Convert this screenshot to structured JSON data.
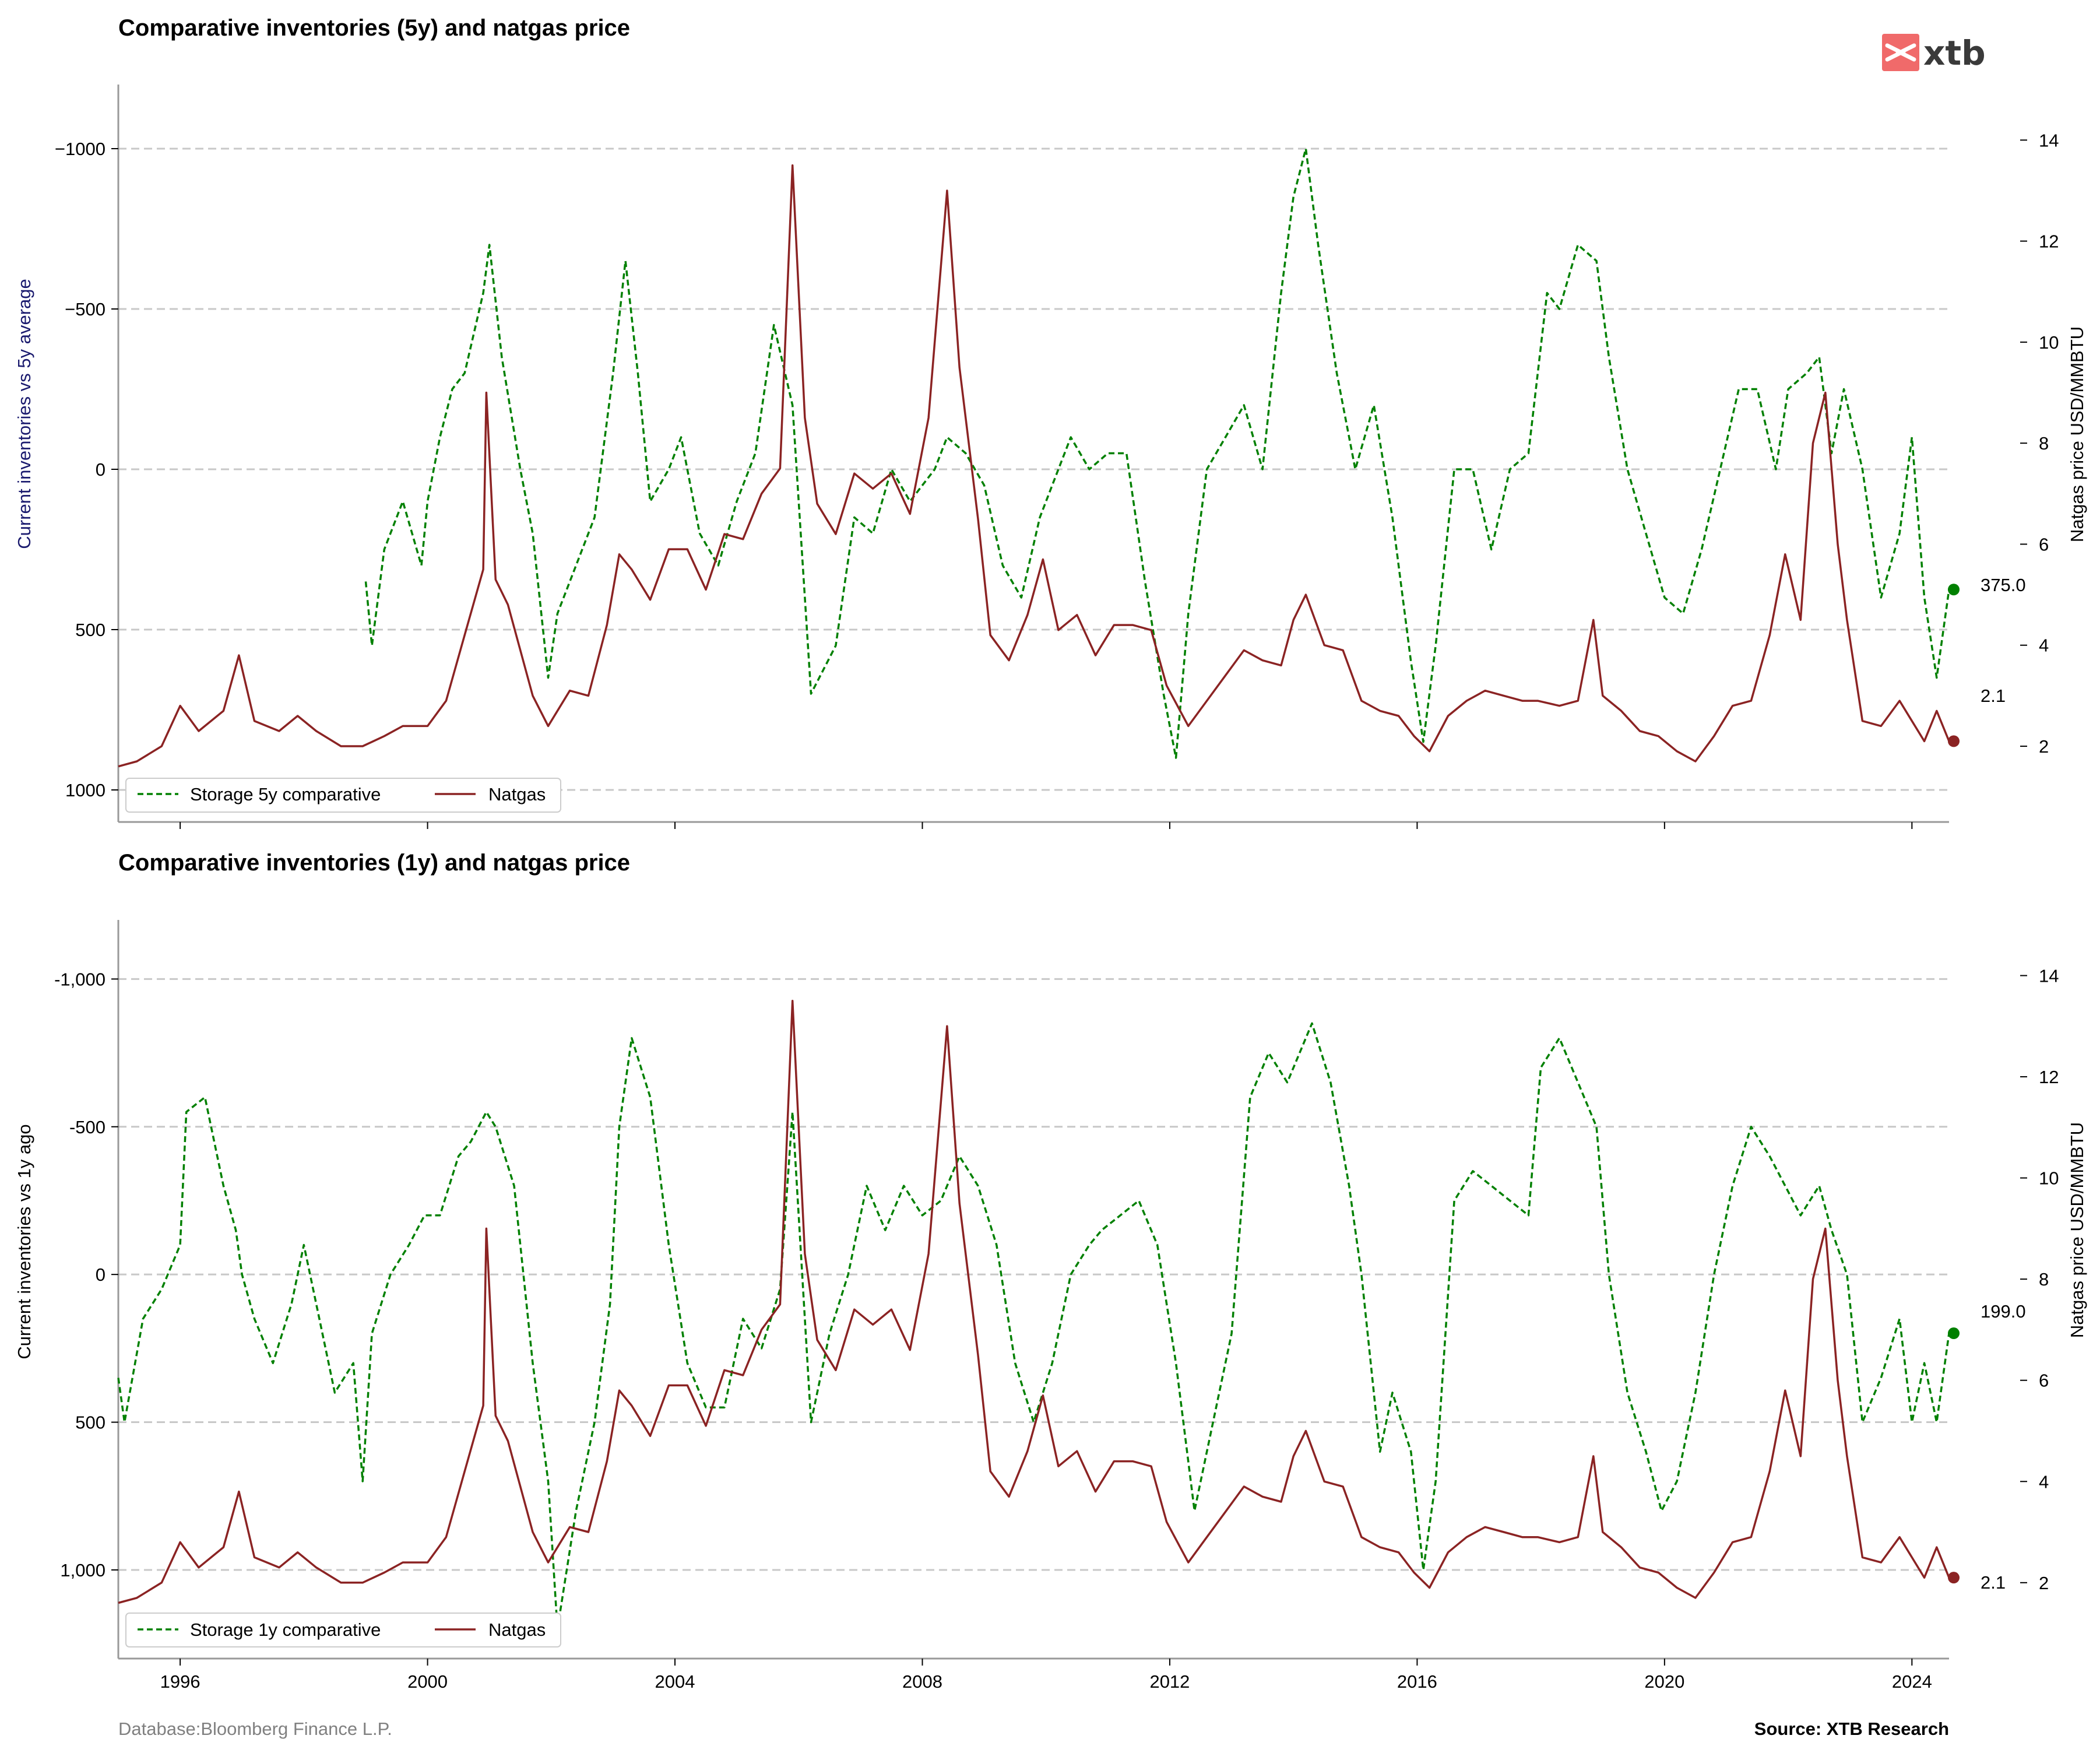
{
  "brand": {
    "logo_text": "xtb",
    "logo_color": "#f06a6a"
  },
  "footer": {
    "database": "Database:Bloomberg Finance L.P.",
    "source": "Source: XTB Research"
  },
  "colors": {
    "storage": "#008000",
    "natgas": "#8b2323",
    "grid": "#c8c8c8",
    "axis": "#999999",
    "left_label_top": "#1a1a6e",
    "left_label_bottom": "#000000"
  },
  "chart_data": [
    {
      "type": "line",
      "title": "Comparative inventories (5y) and natgas price",
      "ylabel": "Current inventories vs 5y average",
      "y2label": "Natgas price USD/MMBTU",
      "xlim": [
        1995.0,
        2024.6
      ],
      "ylim": [
        1100,
        -1200
      ],
      "y_inverted": true,
      "yticks": [
        -1000,
        -500,
        0,
        500,
        1000
      ],
      "ytick_labels": [
        "−1000",
        "−500",
        "0",
        "500",
        "1000"
      ],
      "y2lim": [
        0.5,
        15.1
      ],
      "y2ticks": [
        2,
        4,
        6,
        8,
        10,
        12,
        14
      ],
      "y2tick_labels": [
        "2",
        "4",
        "6",
        "8",
        "10",
        "12",
        "14"
      ],
      "grid": true,
      "legend": "bottom-left",
      "series": [
        {
          "name": "Storage 5y comparative",
          "style": "dashed",
          "axis": "left",
          "x": [
            1999.0,
            1999.1,
            1999.3,
            1999.6,
            1999.9,
            2000.0,
            2000.2,
            2000.4,
            2000.6,
            2000.9,
            2001.0,
            2001.2,
            2001.5,
            2001.7,
            2001.95,
            2002.1,
            2002.4,
            2002.7,
            2003.0,
            2003.2,
            2003.4,
            2003.6,
            2003.9,
            2004.1,
            2004.4,
            2004.7,
            2005.0,
            2005.3,
            2005.6,
            2005.9,
            2006.2,
            2006.6,
            2006.9,
            2007.2,
            2007.5,
            2007.8,
            2008.2,
            2008.4,
            2008.7,
            2009.0,
            2009.3,
            2009.6,
            2009.9,
            2010.2,
            2010.4,
            2010.7,
            2011.0,
            2011.3,
            2011.6,
            2011.9,
            2012.1,
            2012.3,
            2012.6,
            2012.9,
            2013.2,
            2013.5,
            2013.8,
            2014.0,
            2014.2,
            2014.4,
            2014.7,
            2015.0,
            2015.3,
            2015.6,
            2015.9,
            2016.1,
            2016.3,
            2016.6,
            2016.9,
            2017.2,
            2017.5,
            2017.8,
            2018.1,
            2018.3,
            2018.6,
            2018.9,
            2019.1,
            2019.4,
            2019.7,
            2020.0,
            2020.3,
            2020.6,
            2020.9,
            2021.2,
            2021.5,
            2021.8,
            2022.0,
            2022.3,
            2022.5,
            2022.7,
            2022.9,
            2023.2,
            2023.5,
            2023.8,
            2024.0,
            2024.2,
            2024.4,
            2024.6
          ],
          "values": [
            350,
            550,
            250,
            100,
            300,
            100,
            -100,
            -250,
            -300,
            -550,
            -700,
            -350,
            0,
            200,
            650,
            450,
            300,
            150,
            -300,
            -650,
            -300,
            100,
            0,
            -100,
            200,
            300,
            100,
            -50,
            -450,
            -200,
            700,
            550,
            150,
            200,
            0,
            100,
            0,
            -100,
            -50,
            50,
            300,
            400,
            150,
            0,
            -100,
            0,
            -50,
            -50,
            350,
            700,
            900,
            450,
            0,
            -100,
            -200,
            0,
            -550,
            -850,
            -1000,
            -700,
            -300,
            0,
            -200,
            150,
            600,
            850,
            550,
            0,
            0,
            250,
            0,
            -50,
            -550,
            -500,
            -700,
            -650,
            -350,
            0,
            200,
            400,
            450,
            250,
            0,
            -250,
            -250,
            0,
            -250,
            -300,
            -350,
            -50,
            -250,
            0,
            400,
            200,
            -100,
            400,
            650,
            375
          ]
        },
        {
          "name": "Natgas",
          "style": "solid",
          "axis": "right",
          "x": [
            1995.0,
            1995.3,
            1995.7,
            1996.0,
            1996.3,
            1996.7,
            1996.95,
            1997.2,
            1997.6,
            1997.9,
            1998.2,
            1998.6,
            1998.95,
            1999.3,
            1999.6,
            2000.0,
            2000.3,
            2000.6,
            2000.9,
            2000.95,
            2001.1,
            2001.3,
            2001.7,
            2001.95,
            2002.3,
            2002.6,
            2002.9,
            2003.1,
            2003.3,
            2003.6,
            2003.9,
            2004.2,
            2004.5,
            2004.8,
            2005.1,
            2005.4,
            2005.7,
            2005.9,
            2006.0,
            2006.1,
            2006.3,
            2006.6,
            2006.9,
            2007.2,
            2007.5,
            2007.8,
            2008.1,
            2008.4,
            2008.6,
            2008.9,
            2009.1,
            2009.4,
            2009.7,
            2009.95,
            2010.2,
            2010.5,
            2010.8,
            2011.1,
            2011.4,
            2011.7,
            2011.95,
            2012.3,
            2012.6,
            2012.9,
            2013.2,
            2013.5,
            2013.8,
            2014.0,
            2014.2,
            2014.5,
            2014.8,
            2015.1,
            2015.4,
            2015.7,
            2015.95,
            2016.2,
            2016.5,
            2016.8,
            2017.1,
            2017.4,
            2017.7,
            2017.95,
            2018.3,
            2018.6,
            2018.85,
            2019.0,
            2019.3,
            2019.6,
            2019.9,
            2020.2,
            2020.5,
            2020.8,
            2021.1,
            2021.4,
            2021.7,
            2021.95,
            2022.2,
            2022.4,
            2022.6,
            2022.8,
            2022.95,
            2023.2,
            2023.5,
            2023.8,
            2024.0,
            2024.2,
            2024.4,
            2024.6
          ],
          "values": [
            1.6,
            1.7,
            2.0,
            2.8,
            2.3,
            2.7,
            3.8,
            2.5,
            2.3,
            2.6,
            2.3,
            2.0,
            2.0,
            2.2,
            2.4,
            2.4,
            2.9,
            4.2,
            5.5,
            9.0,
            5.3,
            4.8,
            3.0,
            2.4,
            3.1,
            3.0,
            4.4,
            5.8,
            5.5,
            4.9,
            5.9,
            5.9,
            5.1,
            6.2,
            6.1,
            7.0,
            7.5,
            13.5,
            11.0,
            8.5,
            6.8,
            6.2,
            7.4,
            7.1,
            7.4,
            6.6,
            8.5,
            13.0,
            9.5,
            6.5,
            4.2,
            3.7,
            4.6,
            5.7,
            4.3,
            4.6,
            3.8,
            4.4,
            4.4,
            4.3,
            3.2,
            2.4,
            2.9,
            3.4,
            3.9,
            3.7,
            3.6,
            4.5,
            5.0,
            4.0,
            3.9,
            2.9,
            2.7,
            2.6,
            2.2,
            1.9,
            2.6,
            2.9,
            3.1,
            3.0,
            2.9,
            2.9,
            2.8,
            2.9,
            4.5,
            3.0,
            2.7,
            2.3,
            2.2,
            1.9,
            1.7,
            2.2,
            2.8,
            2.9,
            4.2,
            5.8,
            4.5,
            8.0,
            9.0,
            6.0,
            4.5,
            2.5,
            2.4,
            2.9,
            2.5,
            2.1,
            2.7,
            2.1
          ]
        }
      ],
      "end_labels": {
        "storage": "375.0",
        "natgas": "2.1"
      },
      "end_values": {
        "storage": 375,
        "natgas": 2.1
      }
    },
    {
      "type": "line",
      "title": "Comparative inventories (1y) and natgas price",
      "ylabel": "Current inventories vs 1y ago",
      "y2label": "Natgas price USD/MMBTU",
      "xlim": [
        1995.0,
        2024.6
      ],
      "ylim": [
        1300,
        -1200
      ],
      "y_inverted": true,
      "yticks": [
        -1000,
        -500,
        0,
        500,
        1000
      ],
      "ytick_labels": [
        "-1,000",
        "-500",
        "0",
        "500",
        "1,000"
      ],
      "y2lim": [
        0.5,
        15.1
      ],
      "y2ticks": [
        2,
        4,
        6,
        8,
        10,
        12,
        14
      ],
      "y2tick_labels": [
        "2",
        "4",
        "6",
        "8",
        "10",
        "12",
        "14"
      ],
      "xticks": [
        1996,
        2000,
        2004,
        2008,
        2012,
        2016,
        2020,
        2024
      ],
      "xtick_labels": [
        "1996",
        "2000",
        "2004",
        "2008",
        "2012",
        "2016",
        "2020",
        "2024"
      ],
      "grid": true,
      "legend": "bottom-left",
      "series": [
        {
          "name": "Storage 1y comparative",
          "style": "dashed",
          "axis": "left",
          "x": [
            1995.0,
            1995.1,
            1995.4,
            1995.7,
            1996.0,
            1996.1,
            1996.4,
            1996.7,
            1996.9,
            1997.0,
            1997.2,
            1997.5,
            1997.8,
            1998.0,
            1998.2,
            1998.5,
            1998.8,
            1998.95,
            1999.1,
            1999.4,
            1999.7,
            1999.95,
            2000.2,
            2000.5,
            2000.7,
            2000.95,
            2001.1,
            2001.4,
            2001.7,
            2001.95,
            2002.1,
            2002.4,
            2002.7,
            2002.95,
            2003.1,
            2003.3,
            2003.6,
            2003.9,
            2004.2,
            2004.5,
            2004.8,
            2005.1,
            2005.4,
            2005.7,
            2005.9,
            2006.2,
            2006.5,
            2006.8,
            2007.1,
            2007.4,
            2007.7,
            2008.0,
            2008.3,
            2008.6,
            2008.9,
            2009.2,
            2009.5,
            2009.8,
            2010.1,
            2010.4,
            2010.7,
            2010.9,
            2011.2,
            2011.5,
            2011.8,
            2012.1,
            2012.4,
            2012.7,
            2013.0,
            2013.3,
            2013.6,
            2013.9,
            2014.1,
            2014.3,
            2014.6,
            2014.9,
            2015.1,
            2015.4,
            2015.6,
            2015.9,
            2016.1,
            2016.3,
            2016.6,
            2016.9,
            2017.2,
            2017.5,
            2017.8,
            2018.0,
            2018.3,
            2018.6,
            2018.9,
            2019.1,
            2019.4,
            2019.7,
            2019.95,
            2020.2,
            2020.5,
            2020.8,
            2021.1,
            2021.4,
            2021.7,
            2021.95,
            2022.2,
            2022.5,
            2022.7,
            2022.95,
            2023.2,
            2023.5,
            2023.8,
            2024.0,
            2024.2,
            2024.4,
            2024.6
          ],
          "values": [
            350,
            500,
            150,
            50,
            -100,
            -550,
            -600,
            -300,
            -150,
            0,
            150,
            300,
            100,
            -100,
            100,
            400,
            300,
            700,
            200,
            0,
            -100,
            -200,
            -200,
            -400,
            -450,
            -550,
            -500,
            -300,
            300,
            700,
            1200,
            800,
            500,
            100,
            -500,
            -800,
            -600,
            -100,
            300,
            450,
            450,
            150,
            250,
            50,
            -550,
            500,
            200,
            0,
            -300,
            -150,
            -300,
            -200,
            -250,
            -400,
            -300,
            -100,
            300,
            500,
            300,
            0,
            -100,
            -150,
            -200,
            -250,
            -100,
            300,
            800,
            500,
            200,
            -600,
            -750,
            -650,
            -750,
            -850,
            -650,
            -300,
            0,
            600,
            400,
            600,
            1000,
            700,
            -250,
            -350,
            -300,
            -250,
            -200,
            -700,
            -800,
            -650,
            -500,
            0,
            400,
            600,
            800,
            700,
            400,
            0,
            -300,
            -500,
            -400,
            -300,
            -200,
            -300,
            -150,
            0,
            500,
            350,
            150,
            500,
            300,
            500,
            199
          ]
        },
        {
          "name": "Natgas",
          "style": "solid",
          "axis": "right",
          "x": [
            1995.0,
            1995.3,
            1995.7,
            1996.0,
            1996.3,
            1996.7,
            1996.95,
            1997.2,
            1997.6,
            1997.9,
            1998.2,
            1998.6,
            1998.95,
            1999.3,
            1999.6,
            2000.0,
            2000.3,
            2000.6,
            2000.9,
            2000.95,
            2001.1,
            2001.3,
            2001.7,
            2001.95,
            2002.3,
            2002.6,
            2002.9,
            2003.1,
            2003.3,
            2003.6,
            2003.9,
            2004.2,
            2004.5,
            2004.8,
            2005.1,
            2005.4,
            2005.7,
            2005.9,
            2006.0,
            2006.1,
            2006.3,
            2006.6,
            2006.9,
            2007.2,
            2007.5,
            2007.8,
            2008.1,
            2008.4,
            2008.6,
            2008.9,
            2009.1,
            2009.4,
            2009.7,
            2009.95,
            2010.2,
            2010.5,
            2010.8,
            2011.1,
            2011.4,
            2011.7,
            2011.95,
            2012.3,
            2012.6,
            2012.9,
            2013.2,
            2013.5,
            2013.8,
            2014.0,
            2014.2,
            2014.5,
            2014.8,
            2015.1,
            2015.4,
            2015.7,
            2015.95,
            2016.2,
            2016.5,
            2016.8,
            2017.1,
            2017.4,
            2017.7,
            2017.95,
            2018.3,
            2018.6,
            2018.85,
            2019.0,
            2019.3,
            2019.6,
            2019.9,
            2020.2,
            2020.5,
            2020.8,
            2021.1,
            2021.4,
            2021.7,
            2021.95,
            2022.2,
            2022.4,
            2022.6,
            2022.8,
            2022.95,
            2023.2,
            2023.5,
            2023.8,
            2024.0,
            2024.2,
            2024.4,
            2024.6
          ],
          "values": [
            1.6,
            1.7,
            2.0,
            2.8,
            2.3,
            2.7,
            3.8,
            2.5,
            2.3,
            2.6,
            2.3,
            2.0,
            2.0,
            2.2,
            2.4,
            2.4,
            2.9,
            4.2,
            5.5,
            9.0,
            5.3,
            4.8,
            3.0,
            2.4,
            3.1,
            3.0,
            4.4,
            5.8,
            5.5,
            4.9,
            5.9,
            5.9,
            5.1,
            6.2,
            6.1,
            7.0,
            7.5,
            13.5,
            11.0,
            8.5,
            6.8,
            6.2,
            7.4,
            7.1,
            7.4,
            6.6,
            8.5,
            13.0,
            9.5,
            6.5,
            4.2,
            3.7,
            4.6,
            5.7,
            4.3,
            4.6,
            3.8,
            4.4,
            4.4,
            4.3,
            3.2,
            2.4,
            2.9,
            3.4,
            3.9,
            3.7,
            3.6,
            4.5,
            5.0,
            4.0,
            3.9,
            2.9,
            2.7,
            2.6,
            2.2,
            1.9,
            2.6,
            2.9,
            3.1,
            3.0,
            2.9,
            2.9,
            2.8,
            2.9,
            4.5,
            3.0,
            2.7,
            2.3,
            2.2,
            1.9,
            1.7,
            2.2,
            2.8,
            2.9,
            4.2,
            5.8,
            4.5,
            8.0,
            9.0,
            6.0,
            4.5,
            2.5,
            2.4,
            2.9,
            2.5,
            2.1,
            2.7,
            2.1
          ]
        }
      ],
      "end_labels": {
        "storage": "199.0",
        "natgas": "2.1"
      },
      "end_values": {
        "storage": 199,
        "natgas": 2.1
      }
    }
  ]
}
